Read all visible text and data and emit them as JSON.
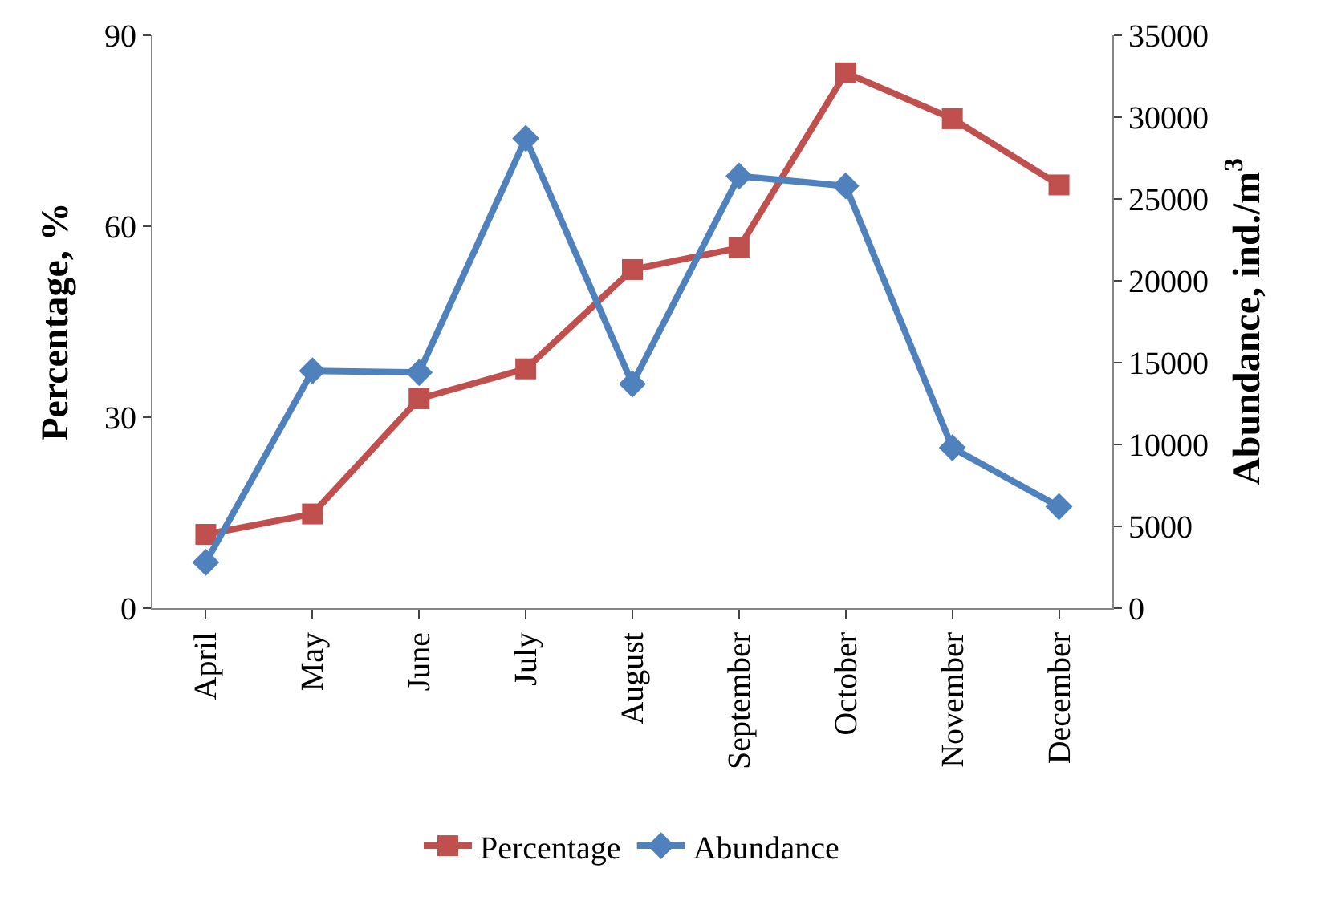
{
  "chart_data": {
    "type": "line",
    "categories": [
      "April",
      "May",
      "June",
      "July",
      "August",
      "September",
      "October",
      "November",
      "December"
    ],
    "series": [
      {
        "name": "Percentage",
        "color": "#c0504d",
        "marker": "square",
        "values": [
          11.6,
          14.8,
          32.9,
          37.6,
          53.2,
          56.6,
          84.1,
          76.9,
          66.5
        ]
      },
      {
        "name": "Abundance",
        "color": "#4f81bd",
        "marker": "diamond",
        "axis": "y2",
        "values": [
          2800,
          14500,
          14400,
          28700,
          13700,
          26400,
          25800,
          9800,
          6200
        ]
      }
    ],
    "ylabel": "Percentage, %",
    "y2label": "Abundance, ind./m$^{3}$",
    "ylim": [
      0,
      90
    ],
    "yticks": [
      0,
      30,
      60,
      90
    ],
    "y2lim": [
      0,
      35000
    ],
    "y2ticks": [
      0,
      5000,
      10000,
      15000,
      20000,
      25000,
      30000,
      35000
    ],
    "legend": "bottom",
    "line_style": "solid"
  }
}
